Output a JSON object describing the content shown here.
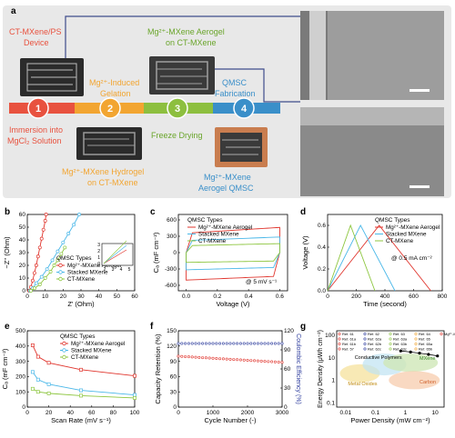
{
  "panel_a": {
    "label": "a",
    "steps": [
      {
        "num": "1",
        "caption": "Immersion into MgCl₂ Solution",
        "color": "#e8523f"
      },
      {
        "num": "2",
        "caption": "Mg²⁺-Induced Gelation",
        "color": "#f2a531"
      },
      {
        "num": "3",
        "caption": "Freeze Drying",
        "color": "#8dbf3f"
      },
      {
        "num": "4",
        "caption": "QMSC Fabrication",
        "color": "#3a8fc9"
      }
    ],
    "top_labels": [
      "CT-MXene/PS Device",
      "Mg²⁺-MXene Aerogel on CT-MXene"
    ],
    "bottom_labels": [
      "Mg²⁺-MXene Hydrogel on CT-MXene",
      "Mg²⁺-MXene Aerogel QMSC"
    ],
    "colors": {
      "panel_bg": "#e8e8e8",
      "red": "#e8523f",
      "orange": "#f2a531",
      "green": "#6aa52b",
      "blue": "#3a8fc9",
      "connector": "#3f4d8c"
    }
  },
  "chart_data": [
    {
      "panel": "b",
      "type": "line",
      "xlabel": "Z' (Ohm)",
      "ylabel": "−Z'' (Ohm)",
      "xlim": [
        0,
        60
      ],
      "ylim": [
        0,
        60
      ],
      "xticks": [
        "0",
        "10",
        "20",
        "30",
        "40",
        "50",
        "60"
      ],
      "yticks": [
        "0",
        "10",
        "20",
        "30",
        "40",
        "50",
        "60"
      ],
      "legend_title": "QMSC Types",
      "series": [
        {
          "name": "Mg²⁺-MXene Aerogel",
          "color": "#e0342c",
          "points": [
            [
              1,
              0
            ],
            [
              2,
              3
            ],
            [
              3,
              8
            ],
            [
              4,
              14
            ],
            [
              5,
              20
            ],
            [
              6,
              27
            ],
            [
              7,
              34
            ],
            [
              8,
              41
            ],
            [
              9,
              48
            ],
            [
              10,
              55
            ],
            [
              10.5,
              60
            ]
          ]
        },
        {
          "name": "Stacked MXene",
          "color": "#49b7e8",
          "points": [
            [
              1.5,
              0
            ],
            [
              3,
              2
            ],
            [
              5,
              6
            ],
            [
              8,
              11
            ],
            [
              11,
              17
            ],
            [
              14,
              24
            ],
            [
              17,
              31
            ],
            [
              20,
              38
            ],
            [
              23,
              45
            ],
            [
              26,
              52
            ],
            [
              29,
              60
            ]
          ]
        },
        {
          "name": "CT-MXene",
          "color": "#8dc63f",
          "points": [
            [
              2,
              0
            ],
            [
              4,
              2
            ],
            [
              7,
              5
            ],
            [
              10,
              10
            ],
            [
              13,
              15
            ],
            [
              15,
              20
            ],
            [
              17,
              24
            ],
            [
              19,
              29
            ],
            [
              21,
              34
            ]
          ]
        }
      ],
      "inset": {
        "xticks": [
          "2",
          "3",
          "4",
          "5"
        ],
        "yticks": [
          "0",
          "1",
          "2",
          "3"
        ]
      }
    },
    {
      "panel": "c",
      "type": "line",
      "xlabel": "Voltage (V)",
      "ylabel": "Cₐ (mF cm⁻²)",
      "xlim": [
        -0.05,
        0.65
      ],
      "ylim": [
        -700,
        700
      ],
      "xticks": [
        "0.0",
        "0.2",
        "0.4",
        "0.6"
      ],
      "xtick_values": [
        0,
        0.2,
        0.4,
        0.6
      ],
      "yticks": [
        "-600",
        "-300",
        "0",
        "300",
        "600"
      ],
      "ytick_values": [
        -600,
        -300,
        0,
        300,
        600
      ],
      "legend_title": "QMSC Types",
      "annotation": "@ 5 mV s⁻¹",
      "series": [
        {
          "name": "Mg²⁺-MXene Aerogel",
          "color": "#e0342c",
          "upper": 420,
          "lower": -480
        },
        {
          "name": "Stacked MXene",
          "color": "#49b7e8",
          "upper": 260,
          "lower": -300
        },
        {
          "name": "CT-MXene",
          "color": "#8dc63f",
          "upper": 150,
          "lower": -170
        }
      ]
    },
    {
      "panel": "d",
      "type": "line",
      "xlabel": "Time (second)",
      "ylabel": "Voltage (V)",
      "xlim": [
        0,
        800
      ],
      "ylim": [
        0,
        0.7
      ],
      "xticks": [
        "0",
        "200",
        "400",
        "600",
        "800"
      ],
      "xtick_values": [
        0,
        200,
        400,
        600,
        800
      ],
      "yticks": [
        "0.0",
        "0.2",
        "0.4",
        "0.6"
      ],
      "ytick_values": [
        0,
        0.2,
        0.4,
        0.6
      ],
      "legend_title": "QMSC Types",
      "annotation": "@ 0.5 mA cm⁻²",
      "series": [
        {
          "name": "Mg²⁺-MXene Aerogel",
          "color": "#e0342c",
          "points": [
            [
              0,
              0
            ],
            [
              360,
              0.6
            ],
            [
              720,
              0
            ]
          ]
        },
        {
          "name": "Stacked MXene",
          "color": "#49b7e8",
          "points": [
            [
              0,
              0
            ],
            [
              230,
              0.6
            ],
            [
              470,
              0
            ]
          ]
        },
        {
          "name": "CT-MXene",
          "color": "#8dc63f",
          "points": [
            [
              0,
              0
            ],
            [
              160,
              0.6
            ],
            [
              330,
              0
            ]
          ]
        }
      ]
    },
    {
      "panel": "e",
      "type": "line",
      "xlabel": "Scan Rate (mV s⁻¹)",
      "ylabel": "Cₐ (mF cm⁻²)",
      "xlim": [
        0,
        100
      ],
      "ylim": [
        0,
        500
      ],
      "xticks": [
        "0",
        "20",
        "40",
        "60",
        "80",
        "100"
      ],
      "xtick_values": [
        0,
        20,
        40,
        60,
        80,
        100
      ],
      "yticks": [
        "0",
        "100",
        "200",
        "300",
        "400",
        "500"
      ],
      "ytick_values": [
        0,
        100,
        200,
        300,
        400,
        500
      ],
      "legend_title": "QMSC Types",
      "x": [
        5,
        10,
        20,
        50,
        100
      ],
      "series": [
        {
          "name": "Mg²⁺-MXene Aerogel",
          "color": "#e0342c",
          "values": [
            405,
            330,
            290,
            245,
            205
          ]
        },
        {
          "name": "Stacked MXene",
          "color": "#49b7e8",
          "values": [
            230,
            180,
            150,
            110,
            80
          ]
        },
        {
          "name": "CT-MXene",
          "color": "#8dc63f",
          "values": [
            120,
            100,
            90,
            75,
            60
          ]
        }
      ]
    },
    {
      "panel": "f",
      "type": "scatter",
      "xlabel": "Cycle Number (-)",
      "ylabel": "Capacity Retention (%)",
      "y2label": "Coulombic Efficiency (%)",
      "xlim": [
        0,
        3000
      ],
      "ylim": [
        0,
        150
      ],
      "y2lim": [
        0,
        120
      ],
      "xticks": [
        "0",
        "1000",
        "2000",
        "3000"
      ],
      "xtick_values": [
        0,
        1000,
        2000,
        3000
      ],
      "yticks": [
        "0",
        "30",
        "60",
        "90",
        "120",
        "150"
      ],
      "ytick_values": [
        0,
        30,
        60,
        90,
        120,
        150
      ],
      "y2ticks": [
        "0",
        "30",
        "60",
        "90",
        "120"
      ],
      "y2tick_values": [
        0,
        30,
        60,
        90,
        120
      ],
      "series": [
        {
          "name": "Capacity Retention",
          "color": "#e0342c",
          "axis": "left",
          "start": 100,
          "end": 88
        },
        {
          "name": "Coulombic Efficiency",
          "color": "#2f3e9e",
          "axis": "right",
          "start": 100,
          "end": 100
        }
      ]
    },
    {
      "panel": "g",
      "type": "scatter",
      "xlabel": "Power Density (mW cm⁻²)",
      "ylabel": "Energy Density (μWh cm⁻²)",
      "xscale": "log",
      "yscale": "log",
      "xticks": [
        "0.01",
        "0.1",
        "1",
        "10"
      ],
      "yticks": [
        "0.1",
        "1",
        "10",
        "100"
      ],
      "legend": [
        "Ref. 61",
        "Ref. 61a",
        "Ref. 61b",
        "Ref. 57",
        "Ref. 62",
        "Ref. 62a",
        "Ref. 62b",
        "Ref. 62c",
        "Ref. 63",
        "Ref. 63a",
        "Ref. 63b",
        "Ref. 63c",
        "Ref. 64",
        "Ref. 65",
        "Ref. 65a",
        "Ref. 65b",
        "Mg²⁺-MXene Aerogel QMSC"
      ],
      "regions": [
        "Conductive Polymers",
        "MXene",
        "Metal Oxides",
        "Carbon"
      ],
      "this_work": [
        [
          0.7,
          20
        ],
        [
          1.5,
          18
        ],
        [
          3,
          16
        ],
        [
          6,
          14
        ],
        [
          12,
          12
        ]
      ]
    }
  ]
}
